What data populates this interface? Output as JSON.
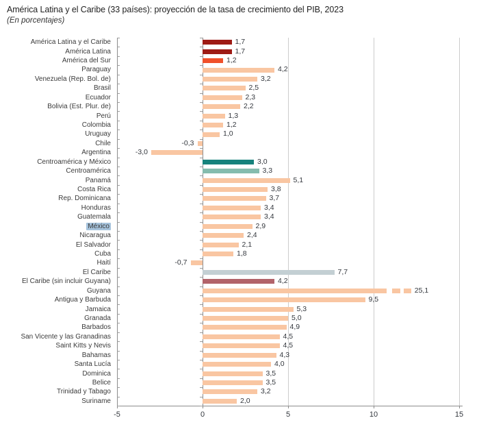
{
  "title": "América Latina y el Caribe (33 países): proyección de la tasa de crecimiento del PIB, 2023",
  "subtitle": "(En porcentajes)",
  "chart_data": {
    "type": "bar",
    "orientation": "horizontal",
    "title": "América Latina y el Caribe (33 países): proyección de la tasa de crecimiento del PIB, 2023",
    "subtitle": "(En porcentajes)",
    "xlabel": "",
    "ylabel": "",
    "xlim": [
      -5,
      15
    ],
    "grid": "vertical-light-at-5-10-15",
    "legend": "none",
    "decimal_separator": ",",
    "x_axis": {
      "ticks": [
        {
          "value": -5,
          "label": "-5"
        },
        {
          "value": 0,
          "label": "0"
        },
        {
          "value": 5,
          "label": "5"
        },
        {
          "value": 10,
          "label": "10"
        },
        {
          "value": 15,
          "label": "15"
        }
      ]
    },
    "colors": {
      "dark_red": "#9E1B15",
      "orange_red": "#F0502A",
      "peach": "#F9C6A2",
      "dark_teal": "#16827C",
      "light_teal": "#85BCAE",
      "gray_blue": "#C3CFD3",
      "maroon": "#B2636A",
      "highlight": "#A6C3DC"
    },
    "rows": [
      {
        "label": "América Latina y el Caribe",
        "value": 1.7,
        "display": "1,7",
        "color": "dark_red"
      },
      {
        "label": "América Latina",
        "value": 1.7,
        "display": "1,7",
        "color": "dark_red"
      },
      {
        "label": "América del Sur",
        "value": 1.2,
        "display": "1,2",
        "color": "orange_red"
      },
      {
        "label": "Paraguay",
        "value": 4.2,
        "display": "4,2",
        "color": "peach"
      },
      {
        "label": "Venezuela (Rep. Bol. de)",
        "value": 3.2,
        "display": "3,2",
        "color": "peach"
      },
      {
        "label": "Brasil",
        "value": 2.5,
        "display": "2,5",
        "color": "peach"
      },
      {
        "label": "Ecuador",
        "value": 2.3,
        "display": "2,3",
        "color": "peach"
      },
      {
        "label": "Bolivia (Est. Plur. de)",
        "value": 2.2,
        "display": "2,2",
        "color": "peach"
      },
      {
        "label": "Perú",
        "value": 1.3,
        "display": "1,3",
        "color": "peach"
      },
      {
        "label": "Colombia",
        "value": 1.2,
        "display": "1,2",
        "color": "peach"
      },
      {
        "label": "Uruguay",
        "value": 1.0,
        "display": "1,0",
        "color": "peach"
      },
      {
        "label": "Chile",
        "value": -0.3,
        "display": "-0,3",
        "color": "peach"
      },
      {
        "label": "Argentina",
        "value": -3.0,
        "display": "-3,0",
        "color": "peach"
      },
      {
        "label": "Centroamérica y México",
        "value": 3.0,
        "display": "3,0",
        "color": "dark_teal"
      },
      {
        "label": "Centroamérica",
        "value": 3.3,
        "display": "3,3",
        "color": "light_teal"
      },
      {
        "label": "Panamá",
        "value": 5.1,
        "display": "5,1",
        "color": "peach"
      },
      {
        "label": "Costa Rica",
        "value": 3.8,
        "display": "3,8",
        "color": "peach"
      },
      {
        "label": "Rep. Dominicana",
        "value": 3.7,
        "display": "3,7",
        "color": "peach"
      },
      {
        "label": "Honduras",
        "value": 3.4,
        "display": "3,4",
        "color": "peach"
      },
      {
        "label": "Guatemala",
        "value": 3.4,
        "display": "3,4",
        "color": "peach"
      },
      {
        "label": "México",
        "value": 2.9,
        "display": "2,9",
        "color": "peach",
        "highlighted": true
      },
      {
        "label": "Nicaragua",
        "value": 2.4,
        "display": "2,4",
        "color": "peach"
      },
      {
        "label": "El Salvador",
        "value": 2.1,
        "display": "2,1",
        "color": "peach"
      },
      {
        "label": "Cuba",
        "value": 1.8,
        "display": "1,8",
        "color": "peach"
      },
      {
        "label": "Haití",
        "value": -0.7,
        "display": "-0,7",
        "color": "peach"
      },
      {
        "label": "El Caribe",
        "value": 7.7,
        "display": "7,7",
        "color": "gray_blue"
      },
      {
        "label": "El Caribe (sin incluir Guyana)",
        "value": 4.2,
        "display": "4,2",
        "color": "maroon"
      },
      {
        "label": "Guyana",
        "value": 25.1,
        "display": "25,1",
        "color": "peach",
        "truncated": true
      },
      {
        "label": "Antigua y Barbuda",
        "value": 9.5,
        "display": "9,5",
        "color": "peach"
      },
      {
        "label": "Jamaica",
        "value": 5.3,
        "display": "5,3",
        "color": "peach"
      },
      {
        "label": "Granada",
        "value": 5.0,
        "display": "5,0",
        "color": "peach"
      },
      {
        "label": "Barbados",
        "value": 4.9,
        "display": "4,9",
        "color": "peach"
      },
      {
        "label": "San Vicente y las Granadinas",
        "value": 4.5,
        "display": "4,5",
        "color": "peach"
      },
      {
        "label": "Saint Kitts y Nevis",
        "value": 4.5,
        "display": "4,5",
        "color": "peach"
      },
      {
        "label": "Bahamas",
        "value": 4.3,
        "display": "4,3",
        "color": "peach"
      },
      {
        "label": "Santa Lucía",
        "value": 4.0,
        "display": "4,0",
        "color": "peach"
      },
      {
        "label": "Dominica",
        "value": 3.5,
        "display": "3,5",
        "color": "peach"
      },
      {
        "label": "Belice",
        "value": 3.5,
        "display": "3,5",
        "color": "peach"
      },
      {
        "label": "Trinidad y Tabago",
        "value": 3.2,
        "display": "3,2",
        "color": "peach"
      },
      {
        "label": "Suriname",
        "value": 2.0,
        "display": "2,0",
        "color": "peach"
      }
    ]
  }
}
